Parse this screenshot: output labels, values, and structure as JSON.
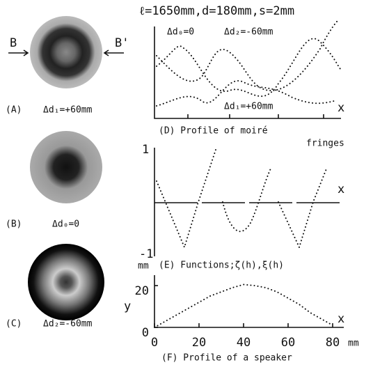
{
  "panels": {
    "A": {
      "label": "(A)",
      "caption": "Δd₁=+60mm",
      "left_marker": "B",
      "right_marker": "B'"
    },
    "B": {
      "label": "(B)",
      "caption": "Δd₀=0"
    },
    "C": {
      "label": "(C)",
      "caption": "Δd₂=-60mm"
    },
    "D": {
      "header": "ℓ=1650mm,d=180mm,s=2mm",
      "curve_labels": [
        "Δd₀=0",
        "Δd₂=-60mm",
        "Δd₁=+60mm"
      ],
      "x_label": "x",
      "caption": "(D) Profile of moiré",
      "caption_2": "fringes"
    },
    "E": {
      "ytick_top": "1",
      "ytick_bottom": "-1",
      "x_label": "x",
      "caption": "(E) Functions;ζ(h),ξ(h)",
      "stray_unit": "mm"
    }
  },
  "chart_data": {
    "type": "line",
    "caption": "(F) Profile of a speaker",
    "x": [
      0,
      5,
      10,
      15,
      20,
      25,
      30,
      35,
      40,
      45,
      50,
      55,
      60,
      65,
      70,
      75,
      80
    ],
    "values": [
      0,
      3,
      6,
      9,
      12,
      15,
      17,
      19,
      20.5,
      20,
      19,
      17,
      14,
      11,
      7,
      4,
      1
    ],
    "xlim": [
      0,
      85
    ],
    "ylim": [
      0,
      25
    ],
    "xticks": [
      0,
      20,
      40,
      60,
      80
    ],
    "yticks": [
      0,
      20
    ],
    "x_label": "x",
    "y_label": "y",
    "x_unit": "mm"
  }
}
